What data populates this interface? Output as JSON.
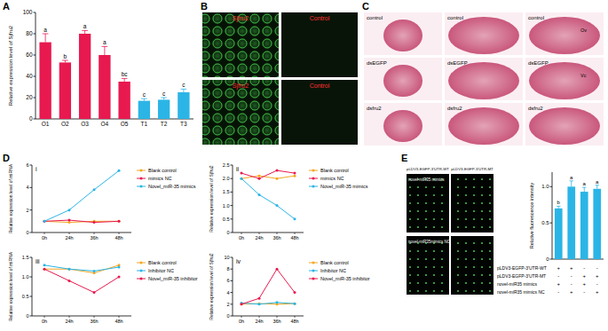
{
  "panel_labels": [
    "A",
    "B",
    "C",
    "D",
    "E"
  ],
  "chart_data": [
    {
      "type": "bar",
      "y_label": "Relative expression level of Sjfru2",
      "categories": [
        "O1",
        "O2",
        "O3",
        "O4",
        "O5",
        "T1",
        "T2",
        "T3"
      ],
      "values": [
        72,
        53,
        80,
        60,
        35,
        17,
        18,
        25
      ],
      "errors": [
        8,
        2,
        3,
        8,
        3,
        2,
        2,
        3
      ],
      "sig_labels": [
        "a",
        "b",
        "a",
        "a",
        "bc",
        "c",
        "c",
        "c"
      ],
      "colors": [
        "#e8194f",
        "#e8194f",
        "#e8194f",
        "#e8194f",
        "#e8194f",
        "#2bb5e6",
        "#2bb5e6",
        "#2bb5e6"
      ],
      "ylim": [
        0,
        100
      ],
      "yticks": [
        0,
        20,
        40,
        60,
        80,
        100
      ]
    },
    {
      "type": "line",
      "title": "i",
      "y_label": "Relative expression level of miRNA",
      "categories": [
        "0h",
        "24h",
        "36h",
        "48h"
      ],
      "series": [
        {
          "name": "Blank control",
          "color": "#f5a623",
          "values": [
            1,
            0.9,
            1,
            1
          ]
        },
        {
          "name": "mimics NC",
          "color": "#e8194f",
          "values": [
            1,
            1.1,
            0.9,
            1
          ]
        },
        {
          "name": "Novel_miR-35 mimics",
          "color": "#2bb5e6",
          "values": [
            1,
            2,
            3.8,
            5.5
          ]
        }
      ],
      "ylim": [
        0,
        6
      ],
      "yticks": [
        0,
        2,
        4,
        6
      ],
      "marker": "circle",
      "legend": "right"
    },
    {
      "type": "line",
      "title": "ii",
      "y_label": "Relative expression level of Sjfru2",
      "categories": [
        "0h",
        "24h",
        "36h",
        "48h"
      ],
      "series": [
        {
          "name": "Blank control",
          "color": "#f5a623",
          "values": [
            2,
            2.1,
            2,
            2.1
          ]
        },
        {
          "name": "mimics NC",
          "color": "#e8194f",
          "values": [
            2.2,
            2,
            2.3,
            2.2
          ]
        },
        {
          "name": "Novel_miR-35 mimics",
          "color": "#2bb5e6",
          "values": [
            2,
            1.4,
            1,
            0.5
          ]
        }
      ],
      "ylim": [
        0,
        2.5
      ],
      "yticks": [
        0,
        0.5,
        {
          "value": 1,
          "label": "1.0"
        },
        1.5,
        {
          "value": 2,
          "label": "2.0"
        },
        2.5
      ],
      "marker": "circle",
      "legend": "right"
    },
    {
      "type": "line",
      "title": "iii",
      "y_label": "Relative expression level of miRNA",
      "categories": [
        "0h",
        "24h",
        "36h",
        "48h"
      ],
      "series": [
        {
          "name": "Blank control",
          "color": "#f5a623",
          "values": [
            1.2,
            1.2,
            1.1,
            1.3
          ]
        },
        {
          "name": "Inhibitor NC",
          "color": "#2bb5e6",
          "values": [
            1.3,
            1.2,
            1.15,
            1.25
          ]
        },
        {
          "name": "Novel_miR-35 inhibitor",
          "color": "#e8194f",
          "values": [
            1.2,
            0.9,
            0.6,
            1
          ]
        }
      ],
      "ylim": [
        0,
        1.5
      ],
      "yticks": [
        0,
        0.5,
        {
          "value": 1,
          "label": "1.0"
        },
        1.5
      ],
      "marker": "circle",
      "legend": "right"
    },
    {
      "type": "line",
      "title": "iv",
      "y_label": "Relative expression level of Sjfru2",
      "categories": [
        "0h",
        "24h",
        "36h",
        "48h"
      ],
      "series": [
        {
          "name": "Blank control",
          "color": "#f5a623",
          "values": [
            2,
            2.1,
            2,
            2.1
          ]
        },
        {
          "name": "Inhibitor NC",
          "color": "#2bb5e6",
          "values": [
            2.2,
            2,
            2.3,
            2.1
          ]
        },
        {
          "name": "Novel_miR-35 inhibitor",
          "color": "#e8194f",
          "values": [
            2,
            3,
            8,
            4
          ]
        }
      ],
      "ylim": [
        0,
        10
      ],
      "yticks": [
        0,
        2,
        4,
        6,
        8,
        10
      ],
      "marker": "circle",
      "legend": "right"
    },
    {
      "type": "bar",
      "y_label": "Relative fluorescence intensity",
      "categories": [
        null,
        null,
        null,
        null
      ],
      "values": [
        0.7,
        1,
        0.93,
        0.97
      ],
      "errors": [
        0.03,
        0.08,
        0.06,
        0.05
      ],
      "sig_labels": [
        "b",
        "a",
        "a",
        "a"
      ],
      "color": "#2bb5e6",
      "ylim": [
        0,
        1.2
      ],
      "yticks": [
        0,
        0.5,
        {
          "value": 1,
          "label": "1.0"
        }
      ],
      "table": {
        "rows": [
          {
            "label": "pLDV3-EGFP-3'UTR-WT",
            "marks": [
              "+",
              "+",
              "-",
              "-"
            ]
          },
          {
            "label": "pLDV3-EGFP-3'UTR-MT",
            "marks": [
              "-",
              "-",
              "+",
              "+"
            ]
          },
          {
            "label": "novel-miR35 mimics",
            "marks": [
              "+",
              "-",
              "+",
              "-"
            ]
          },
          {
            "label": "novel-miR35 mimics NC",
            "marks": [
              "-",
              "+",
              "-",
              "+"
            ]
          }
        ]
      }
    }
  ],
  "images": {
    "B": {
      "tiles": [
        "Sjfru2",
        "Control",
        "Sjfru2",
        "Control"
      ]
    },
    "C": {
      "rows": [
        "control",
        "dsEGFP",
        "dsfru2"
      ],
      "annotations": [
        "Ov",
        "Vc"
      ]
    },
    "E": {
      "columns": [
        "pLDV3-EGFP-3'UTR-WT",
        "pLDV3-EGFP-3'UTR-MT"
      ],
      "rows": [
        "novel-miR35 mimics",
        "novel-miR35mimics NC"
      ]
    }
  }
}
